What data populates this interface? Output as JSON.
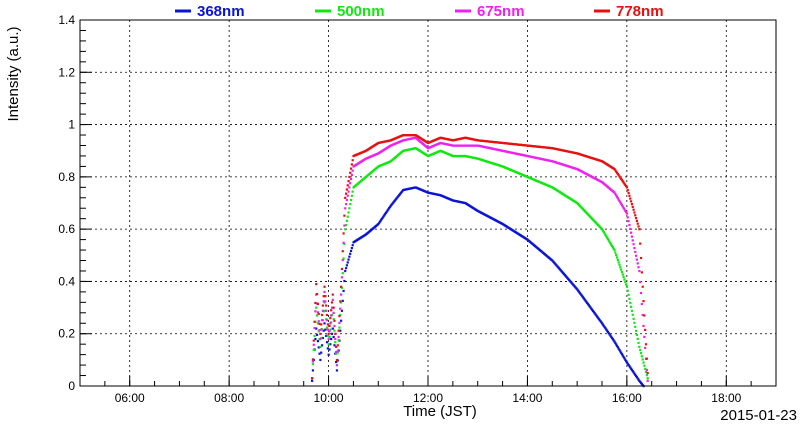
{
  "chart_data": {
    "type": "scatter",
    "title": "",
    "xlabel": "Time (JST)",
    "ylabel": "Intensity (a.u.)",
    "date_label": "2015-01-23",
    "xlim": [
      "05:00",
      "19:00"
    ],
    "ylim": [
      0,
      1.4
    ],
    "x_ticks": [
      "06:00",
      "08:00",
      "10:00",
      "12:00",
      "14:00",
      "16:00",
      "18:00"
    ],
    "y_ticks": [
      "0",
      "0.2",
      "0.4",
      "0.6",
      "0.8",
      "1",
      "1.2",
      "1.4"
    ],
    "grid": true,
    "legend_position": "top",
    "series": [
      {
        "name": "368nm",
        "color": "#0a14d6",
        "points": [
          [
            "09:40",
            0.02
          ],
          [
            "09:45",
            0.22
          ],
          [
            "09:50",
            0.1
          ],
          [
            "09:55",
            0.24
          ],
          [
            "10:00",
            0.12
          ],
          [
            "10:05",
            0.22
          ],
          [
            "10:10",
            0.06
          ],
          [
            "10:15",
            0.25
          ],
          [
            "10:20",
            0.44
          ],
          [
            "10:30",
            0.55
          ],
          [
            "10:45",
            0.58
          ],
          [
            "11:00",
            0.62
          ],
          [
            "11:15",
            0.69
          ],
          [
            "11:30",
            0.75
          ],
          [
            "11:45",
            0.76
          ],
          [
            "12:00",
            0.74
          ],
          [
            "12:15",
            0.73
          ],
          [
            "12:30",
            0.71
          ],
          [
            "12:45",
            0.7
          ],
          [
            "13:00",
            0.67
          ],
          [
            "13:30",
            0.62
          ],
          [
            "14:00",
            0.56
          ],
          [
            "14:30",
            0.48
          ],
          [
            "15:00",
            0.37
          ],
          [
            "15:30",
            0.24
          ],
          [
            "15:45",
            0.17
          ],
          [
            "16:00",
            0.09
          ],
          [
            "16:15",
            0.02
          ],
          [
            "16:20",
            0.0
          ]
        ]
      },
      {
        "name": "500nm",
        "color": "#10e810",
        "points": [
          [
            "09:40",
            0.03
          ],
          [
            "09:45",
            0.3
          ],
          [
            "09:50",
            0.15
          ],
          [
            "09:55",
            0.32
          ],
          [
            "10:00",
            0.16
          ],
          [
            "10:05",
            0.3
          ],
          [
            "10:10",
            0.08
          ],
          [
            "10:15",
            0.32
          ],
          [
            "10:20",
            0.6
          ],
          [
            "10:30",
            0.76
          ],
          [
            "10:45",
            0.8
          ],
          [
            "11:00",
            0.84
          ],
          [
            "11:15",
            0.86
          ],
          [
            "11:30",
            0.9
          ],
          [
            "11:45",
            0.91
          ],
          [
            "12:00",
            0.88
          ],
          [
            "12:15",
            0.9
          ],
          [
            "12:30",
            0.88
          ],
          [
            "12:45",
            0.88
          ],
          [
            "13:00",
            0.87
          ],
          [
            "13:30",
            0.84
          ],
          [
            "14:00",
            0.8
          ],
          [
            "14:30",
            0.76
          ],
          [
            "15:00",
            0.7
          ],
          [
            "15:30",
            0.6
          ],
          [
            "15:45",
            0.52
          ],
          [
            "16:00",
            0.38
          ],
          [
            "16:15",
            0.15
          ],
          [
            "16:25",
            0.03
          ]
        ]
      },
      {
        "name": "675nm",
        "color": "#ee22ee",
        "points": [
          [
            "09:40",
            0.03
          ],
          [
            "09:45",
            0.35
          ],
          [
            "09:50",
            0.18
          ],
          [
            "09:55",
            0.36
          ],
          [
            "10:00",
            0.18
          ],
          [
            "10:05",
            0.33
          ],
          [
            "10:10",
            0.08
          ],
          [
            "10:15",
            0.35
          ],
          [
            "10:20",
            0.68
          ],
          [
            "10:30",
            0.84
          ],
          [
            "10:45",
            0.87
          ],
          [
            "11:00",
            0.89
          ],
          [
            "11:15",
            0.92
          ],
          [
            "11:30",
            0.94
          ],
          [
            "11:45",
            0.95
          ],
          [
            "12:00",
            0.91
          ],
          [
            "12:15",
            0.93
          ],
          [
            "12:30",
            0.92
          ],
          [
            "12:45",
            0.92
          ],
          [
            "13:00",
            0.92
          ],
          [
            "13:30",
            0.9
          ],
          [
            "14:00",
            0.88
          ],
          [
            "14:30",
            0.86
          ],
          [
            "15:00",
            0.83
          ],
          [
            "15:30",
            0.78
          ],
          [
            "15:45",
            0.74
          ],
          [
            "16:00",
            0.66
          ],
          [
            "16:15",
            0.44
          ],
          [
            "16:25",
            0.02
          ]
        ]
      },
      {
        "name": "778nm",
        "color": "#e81010",
        "points": [
          [
            "09:40",
            0.03
          ],
          [
            "09:45",
            0.39
          ],
          [
            "09:50",
            0.2
          ],
          [
            "09:55",
            0.38
          ],
          [
            "10:00",
            0.2
          ],
          [
            "10:05",
            0.35
          ],
          [
            "10:10",
            0.1
          ],
          [
            "10:15",
            0.38
          ],
          [
            "10:20",
            0.72
          ],
          [
            "10:30",
            0.88
          ],
          [
            "10:45",
            0.9
          ],
          [
            "11:00",
            0.93
          ],
          [
            "11:15",
            0.94
          ],
          [
            "11:30",
            0.96
          ],
          [
            "11:45",
            0.96
          ],
          [
            "12:00",
            0.93
          ],
          [
            "12:15",
            0.95
          ],
          [
            "12:30",
            0.94
          ],
          [
            "12:45",
            0.95
          ],
          [
            "13:00",
            0.94
          ],
          [
            "13:30",
            0.93
          ],
          [
            "14:00",
            0.92
          ],
          [
            "14:30",
            0.91
          ],
          [
            "15:00",
            0.89
          ],
          [
            "15:30",
            0.86
          ],
          [
            "15:45",
            0.83
          ],
          [
            "16:00",
            0.76
          ],
          [
            "16:15",
            0.6
          ],
          [
            "16:25",
            0.05
          ]
        ]
      }
    ]
  }
}
